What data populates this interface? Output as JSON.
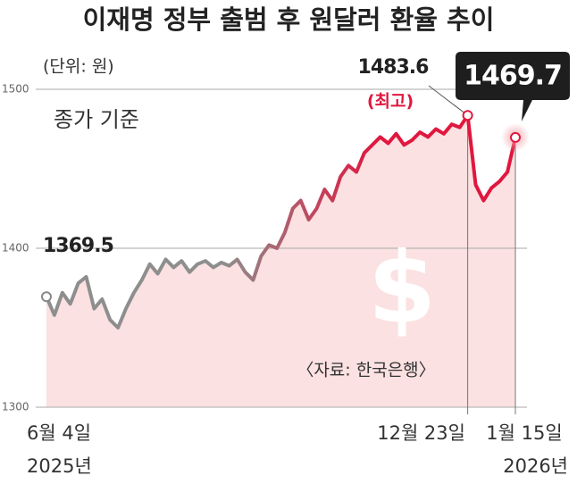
{
  "chart_data": {
    "type": "line",
    "title": "이재명 정부 출범 후 원달러 환율 추이",
    "unit_note": "(단위: 원)",
    "subtitle": "종가 기준",
    "source": "〈자료: 한국은행〉",
    "categories": [
      "6월 4일",
      null,
      null,
      null,
      null,
      null,
      null,
      null,
      null,
      null,
      null,
      null,
      null,
      null,
      null,
      null,
      null,
      null,
      null,
      null,
      null,
      null,
      null,
      null,
      null,
      null,
      null,
      null,
      null,
      null,
      null,
      null,
      null,
      null,
      null,
      null,
      null,
      null,
      null,
      null,
      null,
      null,
      null,
      null,
      null,
      null,
      null,
      null,
      null,
      null,
      null,
      null,
      null,
      "12월 23일",
      null,
      null,
      null,
      null,
      null,
      "1월 15일"
    ],
    "year_labels": [
      "2025년",
      "2026년"
    ],
    "series": [
      {
        "name": "원달러 환율",
        "gradient": [
          "#8e8e8e",
          "#e0173f"
        ],
        "values": [
          1369.5,
          1358,
          1372,
          1365,
          1378,
          1382,
          1362,
          1368,
          1355,
          1350,
          1362,
          1372,
          1380,
          1390,
          1384,
          1393,
          1388,
          1392,
          1385,
          1390,
          1392,
          1388,
          1391,
          1389,
          1393,
          1385,
          1380,
          1395,
          1402,
          1400,
          1410,
          1425,
          1430,
          1418,
          1425,
          1437,
          1430,
          1445,
          1452,
          1448,
          1460,
          1465,
          1470,
          1466,
          1472,
          1465,
          1468,
          1473,
          1470,
          1475,
          1472,
          1478,
          1476,
          1483.6,
          1440,
          1430,
          1438,
          1442,
          1448,
          1469.7
        ]
      }
    ],
    "high_label": "(최고)",
    "area_color": "#fbe1e1",
    "ylim": [
      1300,
      1500
    ],
    "yticks": [
      1300,
      1400,
      1500
    ],
    "grid": true
  }
}
